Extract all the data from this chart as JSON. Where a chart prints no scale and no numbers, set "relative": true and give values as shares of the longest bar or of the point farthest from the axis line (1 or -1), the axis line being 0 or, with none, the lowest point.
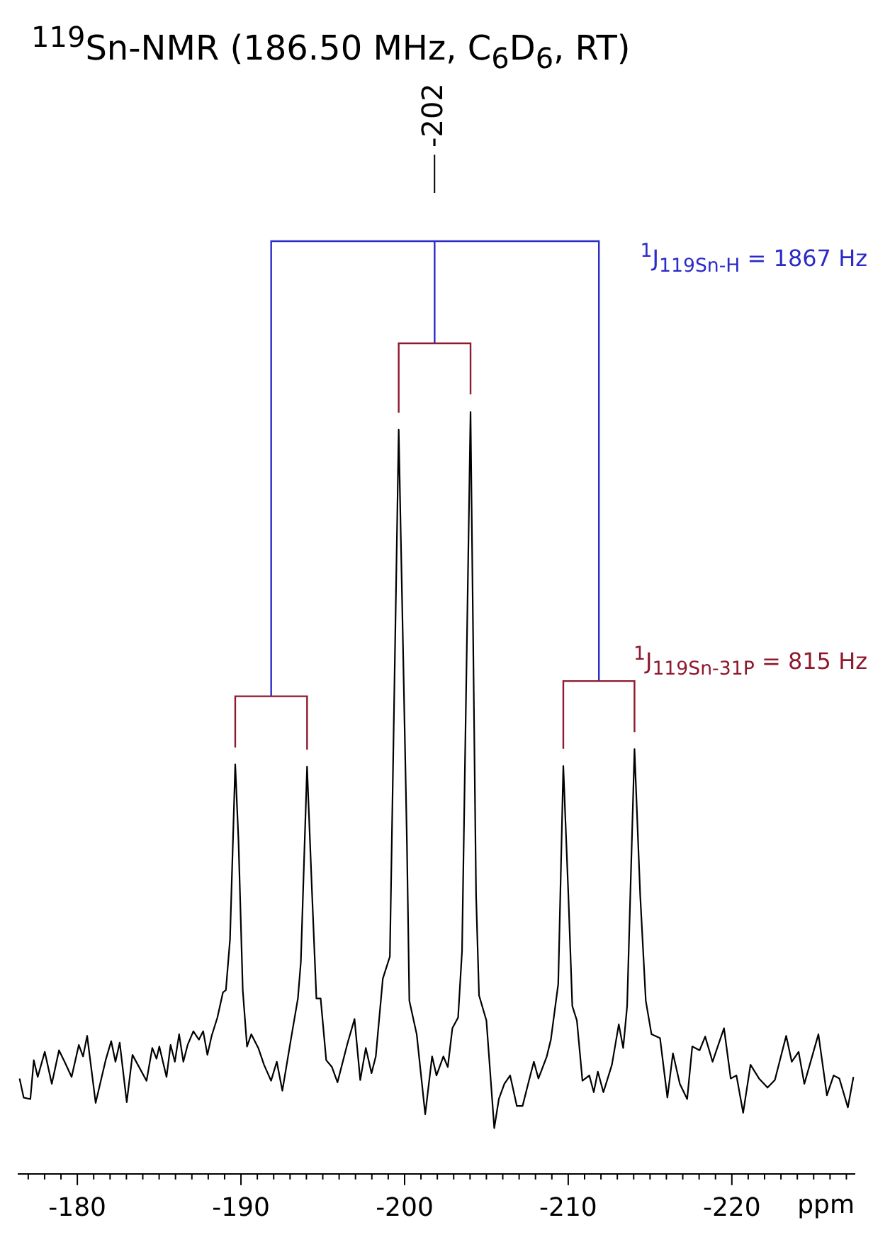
{
  "chart_data": {
    "type": "line",
    "title": "$^{119}$Sn-NMR (186.50 MHz, C$_{6}$D$_{6}$, RT)",
    "xlabel": "ppm",
    "relative": true,
    "color": "#000000",
    "marker": "none",
    "legend": false,
    "grid": false,
    "x": [
      -176.47,
      -176.72,
      -177.13,
      -177.34,
      -177.58,
      -178.01,
      -178.44,
      -178.88,
      -179.22,
      -179.65,
      -180.09,
      -180.35,
      -180.6,
      -181.12,
      -181.73,
      -182.07,
      -182.33,
      -182.59,
      -183.02,
      -183.37,
      -184.23,
      -184.58,
      -184.84,
      -185.01,
      -185.45,
      -185.7,
      -185.96,
      -186.22,
      -186.48,
      -186.74,
      -187.09,
      -187.43,
      -187.69,
      -187.95,
      -188.21,
      -188.56,
      -188.9,
      -189.08,
      -189.33,
      -189.65,
      -189.85,
      -190.11,
      -190.37,
      -190.63,
      -191.06,
      -191.41,
      -191.84,
      -192.19,
      -192.53,
      -193.05,
      -193.48,
      -193.66,
      -194.04,
      -194.35,
      -194.61,
      -194.87,
      -195.21,
      -195.56,
      -195.9,
      -196.51,
      -196.94,
      -197.29,
      -197.63,
      -197.98,
      -198.24,
      -198.67,
      -199.1,
      -199.64,
      -200.14,
      -200.29,
      -200.74,
      -201.26,
      -201.68,
      -201.95,
      -202.37,
      -202.64,
      -202.92,
      -203.27,
      -203.51,
      -204.03,
      -204.37,
      -204.55,
      -205.0,
      -205.48,
      -205.76,
      -206.1,
      -206.45,
      -206.86,
      -207.21,
      -207.55,
      -207.9,
      -208.18,
      -208.69,
      -208.94,
      -209.39,
      -209.7,
      -210.01,
      -210.25,
      -210.53,
      -210.87,
      -211.29,
      -211.56,
      -211.81,
      -212.15,
      -212.67,
      -213.09,
      -213.36,
      -213.6,
      -214.05,
      -214.4,
      -214.74,
      -215.09,
      -215.61,
      -216.06,
      -216.4,
      -216.82,
      -217.27,
      -217.58,
      -218.03,
      -218.37,
      -218.82,
      -219.52,
      -219.93,
      -220.28,
      -220.69,
      -221.14,
      -221.66,
      -222.18,
      -222.63,
      -223.32,
      -223.66,
      -224.08,
      -224.43,
      -225.29,
      -225.81,
      -226.22,
      -226.57,
      -227.09,
      -227.43
    ],
    "values": [
      0.125,
      0.1,
      0.098,
      0.149,
      0.127,
      0.16,
      0.118,
      0.162,
      0.147,
      0.127,
      0.169,
      0.154,
      0.181,
      0.093,
      0.149,
      0.174,
      0.147,
      0.172,
      0.094,
      0.156,
      0.122,
      0.165,
      0.151,
      0.167,
      0.127,
      0.169,
      0.147,
      0.183,
      0.147,
      0.169,
      0.187,
      0.176,
      0.187,
      0.156,
      0.181,
      0.205,
      0.238,
      0.241,
      0.307,
      0.537,
      0.437,
      0.241,
      0.167,
      0.183,
      0.165,
      0.143,
      0.122,
      0.147,
      0.109,
      0.176,
      0.23,
      0.278,
      0.534,
      0.365,
      0.23,
      0.23,
      0.149,
      0.14,
      0.12,
      0.171,
      0.203,
      0.123,
      0.165,
      0.132,
      0.154,
      0.256,
      0.285,
      0.976,
      0.437,
      0.227,
      0.183,
      0.078,
      0.154,
      0.129,
      0.154,
      0.14,
      0.191,
      0.205,
      0.292,
      1.0,
      0.365,
      0.234,
      0.201,
      0.06,
      0.098,
      0.118,
      0.129,
      0.089,
      0.089,
      0.118,
      0.147,
      0.125,
      0.154,
      0.176,
      0.249,
      0.535,
      0.365,
      0.22,
      0.201,
      0.122,
      0.129,
      0.107,
      0.134,
      0.107,
      0.143,
      0.196,
      0.165,
      0.22,
      0.557,
      0.365,
      0.227,
      0.183,
      0.178,
      0.1,
      0.158,
      0.118,
      0.098,
      0.167,
      0.162,
      0.18,
      0.147,
      0.191,
      0.125,
      0.129,
      0.08,
      0.143,
      0.125,
      0.113,
      0.123,
      0.181,
      0.147,
      0.16,
      0.118,
      0.183,
      0.103,
      0.129,
      0.125,
      0.087,
      0.127
    ],
    "xlim": [
      -176.4,
      -227.5
    ],
    "xticks": [
      {
        "value": -177,
        "label": null
      },
      {
        "value": -178,
        "label": null
      },
      {
        "value": -179,
        "label": null
      },
      -180,
      {
        "value": -181,
        "label": null
      },
      {
        "value": -182,
        "label": null
      },
      {
        "value": -183,
        "label": null
      },
      {
        "value": -184,
        "label": null
      },
      {
        "value": -185,
        "label": null
      },
      {
        "value": -186,
        "label": null
      },
      {
        "value": -187,
        "label": null
      },
      {
        "value": -188,
        "label": null
      },
      {
        "value": -189,
        "label": null
      },
      -190,
      {
        "value": -191,
        "label": null
      },
      {
        "value": -192,
        "label": null
      },
      {
        "value": -193,
        "label": null
      },
      {
        "value": -194,
        "label": null
      },
      {
        "value": -195,
        "label": null
      },
      {
        "value": -196,
        "label": null
      },
      {
        "value": -197,
        "label": null
      },
      {
        "value": -198,
        "label": null
      },
      {
        "value": -199,
        "label": null
      },
      -200,
      {
        "value": -201,
        "label": null
      },
      {
        "value": -202,
        "label": null
      },
      {
        "value": -203,
        "label": null
      },
      {
        "value": -204,
        "label": null
      },
      {
        "value": -205,
        "label": null
      },
      {
        "value": -206,
        "label": null
      },
      {
        "value": -207,
        "label": null
      },
      {
        "value": -208,
        "label": null
      },
      {
        "value": -209,
        "label": null
      },
      -210,
      {
        "value": -211,
        "label": null
      },
      {
        "value": -212,
        "label": null
      },
      {
        "value": -213,
        "label": null
      },
      {
        "value": -214,
        "label": null
      },
      {
        "value": -215,
        "label": null
      },
      {
        "value": -216,
        "label": null
      },
      {
        "value": -217,
        "label": null
      },
      {
        "value": -218,
        "label": null
      },
      {
        "value": -219,
        "label": null
      },
      -220,
      {
        "value": -221,
        "label": null
      },
      {
        "value": -222,
        "label": null
      },
      {
        "value": -223,
        "label": null
      },
      {
        "value": -224,
        "label": null
      },
      {
        "value": -225,
        "label": null
      },
      {
        "value": -226,
        "label": null
      },
      {
        "value": -227,
        "label": null
      }
    ],
    "annotations": [
      {
        "text": "-202",
        "x": -201.83
      },
      "$^{1}$J$_{119Sn-H}$ = 1867 Hz",
      "$^{1}$J$_{119Sn-31P}$ = 815 Hz"
    ]
  }
}
